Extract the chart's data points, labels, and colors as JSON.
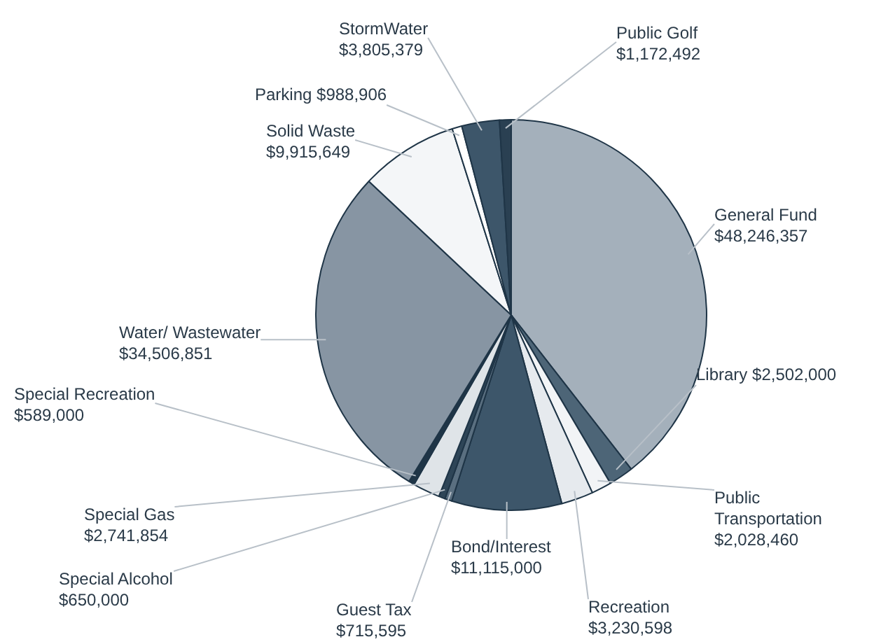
{
  "chart_data": {
    "type": "pie",
    "categories": [
      "General Fund",
      "Library",
      "Public Transportation",
      "Recreation",
      "Bond/Interest",
      "Guest Tax",
      "Special Alcohol",
      "Special Gas",
      "Special Recreation",
      "Water/ Wastewater",
      "Solid Waste",
      "Parking",
      "StormWater",
      "Public Golf"
    ],
    "values": [
      48246357,
      2502000,
      2028460,
      3230598,
      11115000,
      715595,
      650000,
      2741854,
      589000,
      34506851,
      9915649,
      988906,
      3805379,
      1172492
    ],
    "value_labels": [
      "$48,246,357",
      "$2,502,000",
      "$2,028,460",
      "$3,230,598",
      "$11,115,000",
      "$715,595",
      "$650,000",
      "$2,741,854",
      "$589,000",
      "$34,506,851",
      "$9,915,649",
      "$988,906",
      "$3,805,379",
      "$1,172,492"
    ],
    "colors": [
      "#a4b0bb",
      "#4d6577",
      "#f2f4f6",
      "#e6eaee",
      "#3d566a",
      "#5a6f80",
      "#2e4557",
      "#dfe4e8",
      "#1f3547",
      "#8795a3",
      "#f4f6f8",
      "#ffffff",
      "#3d566a",
      "#2a4052"
    ],
    "legend": false
  }
}
